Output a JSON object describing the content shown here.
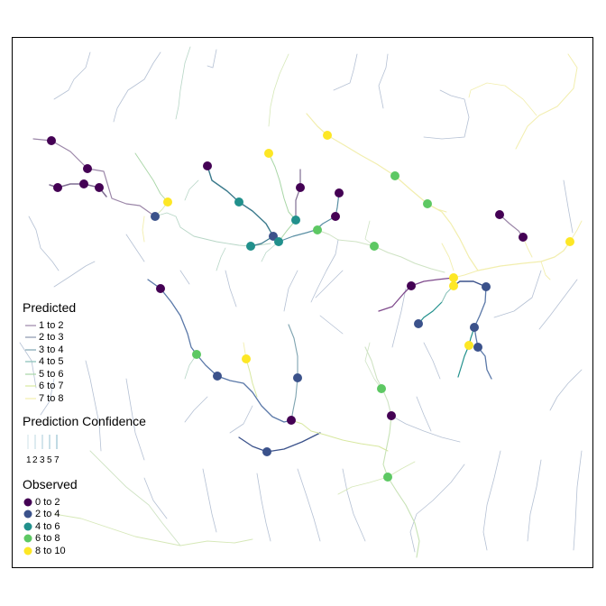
{
  "legend": {
    "predicted": {
      "title": "Predicted",
      "items": [
        {
          "label": "1 to 2",
          "color": "#9b86a8"
        },
        {
          "label": "2 to 3",
          "color": "#8a96ad"
        },
        {
          "label": "3 to 4",
          "color": "#7ea3b0"
        },
        {
          "label": "4 to 5",
          "color": "#86bfb6"
        },
        {
          "label": "5 to 6",
          "color": "#a8d6a6"
        },
        {
          "label": "6 to 7",
          "color": "#d8e8a0"
        },
        {
          "label": "7 to 8",
          "color": "#f2eeae"
        }
      ]
    },
    "confidence": {
      "title": "Prediction Confidence",
      "values": [
        "1",
        "2",
        "3",
        "5",
        "7"
      ]
    },
    "observed": {
      "title": "Observed",
      "items": [
        {
          "label": "0 to 2",
          "color": "#440154"
        },
        {
          "label": "2 to 4",
          "color": "#3b528b"
        },
        {
          "label": "4 to 6",
          "color": "#21908c"
        },
        {
          "label": "6 to 8",
          "color": "#5dc863"
        },
        {
          "label": "8 to 10",
          "color": "#fde725"
        }
      ]
    }
  }
}
